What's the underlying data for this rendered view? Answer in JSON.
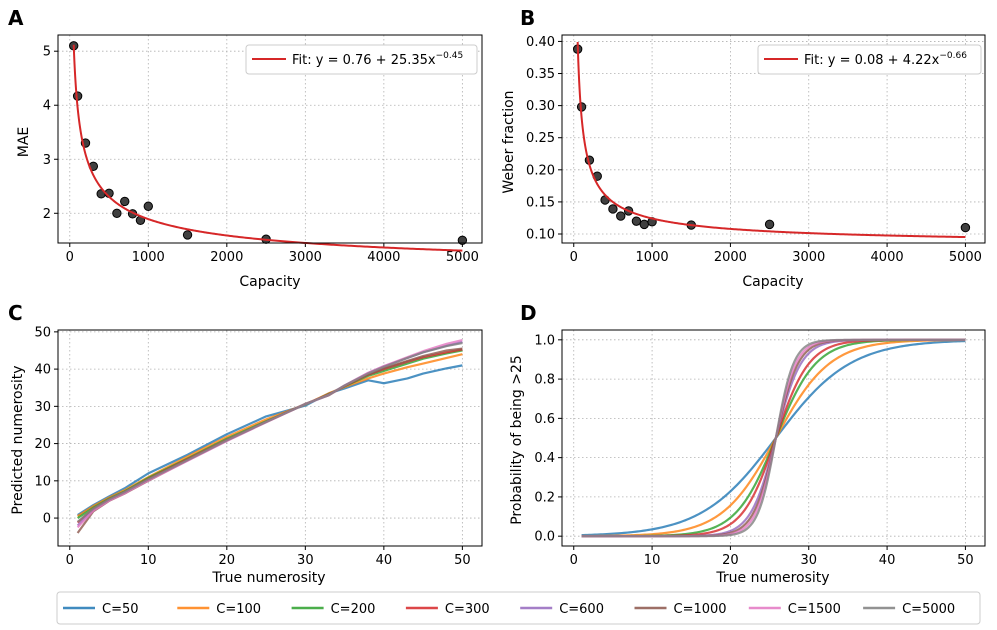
{
  "chart_data": [
    {
      "type": "scatter",
      "panel_label": "A",
      "xlabel": "Capacity",
      "ylabel": "MAE",
      "xlim": [
        -150,
        5250
      ],
      "ylim": [
        1.45,
        5.3
      ],
      "xticks": [
        0,
        1000,
        2000,
        3000,
        4000,
        5000
      ],
      "yticks": [
        2,
        3,
        4,
        5
      ],
      "points": {
        "x": [
          50,
          100,
          200,
          300,
          400,
          500,
          600,
          700,
          800,
          900,
          1000,
          1500,
          2500,
          5000
        ],
        "y": [
          5.1,
          4.17,
          3.3,
          2.87,
          2.36,
          2.37,
          2.0,
          2.22,
          1.99,
          1.87,
          2.13,
          1.6,
          1.52,
          1.5
        ]
      },
      "fit": {
        "a": 0.76,
        "b": 25.35,
        "c": -0.45,
        "x_from": 50,
        "x_to": 5000,
        "color": "#d62728"
      },
      "legend_label": "Fit: y = 0.76 + 25.35x",
      "legend_exponent": "−0.45"
    },
    {
      "type": "scatter",
      "panel_label": "B",
      "xlabel": "Capacity",
      "ylabel": "Weber fraction",
      "xlim": [
        -150,
        5250
      ],
      "ylim": [
        0.086,
        0.41
      ],
      "xticks": [
        0,
        1000,
        2000,
        3000,
        4000,
        5000
      ],
      "yticks": [
        0.1,
        0.15,
        0.2,
        0.25,
        0.3,
        0.35,
        0.4
      ],
      "ytick_labels": [
        "0.10",
        "0.15",
        "0.20",
        "0.25",
        "0.30",
        "0.35",
        "0.40"
      ],
      "points": {
        "x": [
          50,
          100,
          200,
          300,
          400,
          500,
          600,
          700,
          800,
          900,
          1000,
          1500,
          2500,
          5000
        ],
        "y": [
          0.388,
          0.298,
          0.215,
          0.19,
          0.153,
          0.139,
          0.128,
          0.136,
          0.12,
          0.115,
          0.119,
          0.114,
          0.115,
          0.11
        ]
      },
      "fit": {
        "a": 0.08,
        "b": 4.22,
        "c": -0.66,
        "x_from": 50,
        "x_to": 5000,
        "color": "#d62728"
      },
      "legend_label": "Fit: y = 0.08 + 4.22x",
      "legend_exponent": "−0.66"
    },
    {
      "type": "line",
      "panel_label": "C",
      "xlabel": "True numerosity",
      "ylabel": "Predicted numerosity",
      "xlim": [
        -1.5,
        52.5
      ],
      "ylim": [
        -7.5,
        50.5
      ],
      "xticks": [
        0,
        10,
        20,
        30,
        40,
        50
      ],
      "yticks": [
        0,
        10,
        20,
        30,
        40,
        50
      ],
      "x": [
        1,
        3,
        5,
        7,
        10,
        15,
        20,
        25,
        30,
        33,
        35,
        38,
        40,
        43,
        45,
        48,
        50
      ],
      "series": [
        {
          "name": "C=50",
          "color": "#1f77b4",
          "values": [
            0.8,
            3.5,
            5.8,
            8.0,
            12.0,
            17.0,
            22.5,
            27.3,
            30.2,
            33.5,
            34.8,
            37.0,
            36.2,
            37.5,
            38.8,
            40.2,
            41.0
          ]
        },
        {
          "name": "C=100",
          "color": "#ff7f0e",
          "values": [
            0.5,
            3.2,
            5.5,
            7.5,
            11.0,
            16.5,
            21.8,
            26.5,
            30.5,
            33.5,
            35.2,
            37.5,
            38.8,
            40.5,
            41.5,
            43.0,
            44.0
          ]
        },
        {
          "name": "C=200",
          "color": "#2ca02c",
          "values": [
            0.0,
            2.8,
            5.2,
            7.2,
            10.8,
            16.0,
            21.3,
            26.0,
            30.5,
            33.3,
            35.4,
            38.2,
            39.5,
            41.5,
            42.8,
            44.2,
            45.0
          ]
        },
        {
          "name": "C=300",
          "color": "#d62728",
          "values": [
            -1.2,
            2.5,
            5.0,
            7.0,
            10.5,
            15.8,
            21.0,
            25.8,
            30.6,
            33.2,
            35.5,
            38.5,
            40.0,
            42.0,
            43.2,
            44.5,
            45.3
          ]
        },
        {
          "name": "C=600",
          "color": "#9467bd",
          "values": [
            -2.0,
            2.2,
            4.8,
            6.8,
            10.2,
            15.5,
            20.8,
            25.8,
            30.6,
            33.0,
            35.6,
            39.0,
            40.8,
            43.0,
            44.5,
            46.3,
            47.3
          ]
        },
        {
          "name": "C=1000",
          "color": "#8c564b",
          "values": [
            -4.0,
            1.8,
            4.6,
            6.6,
            10.0,
            15.5,
            20.8,
            25.8,
            30.7,
            33.0,
            35.5,
            38.6,
            40.2,
            42.2,
            43.5,
            45.0,
            45.5
          ]
        },
        {
          "name": "C=1500",
          "color": "#e377c2",
          "values": [
            -2.5,
            2.0,
            4.7,
            6.7,
            10.1,
            15.4,
            20.7,
            25.7,
            30.6,
            33.1,
            35.6,
            39.0,
            40.8,
            43.2,
            44.8,
            46.8,
            47.8
          ]
        },
        {
          "name": "C=5000",
          "color": "#7f7f7f",
          "values": [
            -1.0,
            2.5,
            5.0,
            7.0,
            10.4,
            15.6,
            20.9,
            25.8,
            30.6,
            33.1,
            35.6,
            38.8,
            40.6,
            43.0,
            44.5,
            46.2,
            47.0
          ]
        }
      ]
    },
    {
      "type": "line",
      "panel_label": "D",
      "xlabel": "True numerosity",
      "ylabel": "Probability of being >25",
      "xlim": [
        -1.5,
        52.5
      ],
      "ylim": [
        -0.05,
        1.05
      ],
      "xticks": [
        0,
        10,
        20,
        30,
        40,
        50
      ],
      "yticks": [
        0.0,
        0.2,
        0.4,
        0.6,
        0.8,
        1.0
      ],
      "ytick_labels": [
        "0.0",
        "0.2",
        "0.4",
        "0.6",
        "0.8",
        "1.0"
      ],
      "x_range": [
        1,
        50
      ],
      "logistic_midpoint": 25.8,
      "series": [
        {
          "name": "C=50",
          "color": "#1f77b4",
          "slope": 0.21
        },
        {
          "name": "C=100",
          "color": "#ff7f0e",
          "slope": 0.29
        },
        {
          "name": "C=200",
          "color": "#2ca02c",
          "slope": 0.39
        },
        {
          "name": "C=300",
          "color": "#d62728",
          "slope": 0.47
        },
        {
          "name": "C=600",
          "color": "#9467bd",
          "slope": 0.62
        },
        {
          "name": "C=1000",
          "color": "#8c564b",
          "slope": 0.7
        },
        {
          "name": "C=1500",
          "color": "#e377c2",
          "slope": 0.78
        },
        {
          "name": "C=5000",
          "color": "#7f7f7f",
          "slope": 0.88
        }
      ]
    }
  ]
}
